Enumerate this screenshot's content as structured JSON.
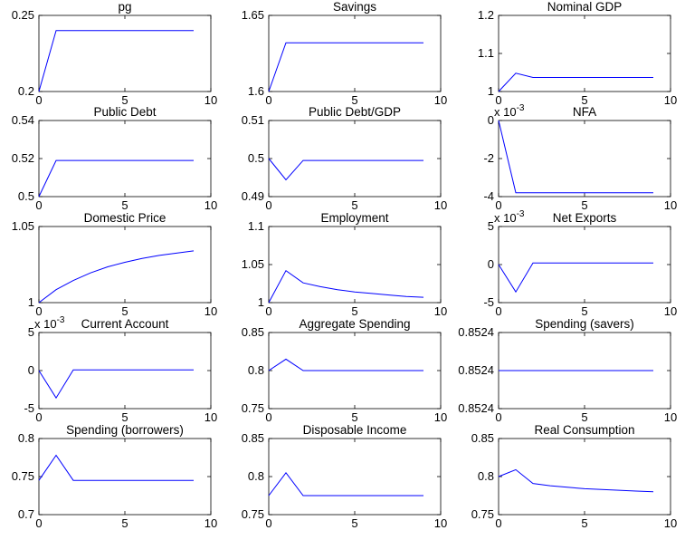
{
  "figure": {
    "background": "#ffffff",
    "line_color": "#0000ff"
  },
  "chart_data": [
    {
      "type": "line",
      "title": "pg",
      "x": [
        0,
        1,
        2,
        3,
        4,
        5,
        6,
        7,
        8,
        9
      ],
      "y": [
        0.2,
        0.24,
        0.24,
        0.24,
        0.24,
        0.24,
        0.24,
        0.24,
        0.24,
        0.24
      ],
      "xlim": [
        0,
        10
      ],
      "ylim": [
        0.2,
        0.25
      ],
      "xticks": [
        "0",
        "5",
        "10"
      ],
      "yticks": [
        "0.2",
        "0.25"
      ],
      "exponent": ""
    },
    {
      "type": "line",
      "title": "Savings",
      "x": [
        0,
        1,
        2,
        3,
        4,
        5,
        6,
        7,
        8,
        9
      ],
      "y": [
        1.6,
        1.632,
        1.632,
        1.632,
        1.632,
        1.632,
        1.632,
        1.632,
        1.632,
        1.632
      ],
      "xlim": [
        0,
        10
      ],
      "ylim": [
        1.6,
        1.65
      ],
      "xticks": [
        "0",
        "5",
        "10"
      ],
      "yticks": [
        "1.6",
        "1.65"
      ],
      "exponent": ""
    },
    {
      "type": "line",
      "title": "Nominal GDP",
      "x": [
        0,
        1,
        2,
        3,
        4,
        5,
        6,
        7,
        8,
        9
      ],
      "y": [
        1.0,
        1.048,
        1.037,
        1.037,
        1.037,
        1.037,
        1.037,
        1.037,
        1.037,
        1.037
      ],
      "xlim": [
        0,
        10
      ],
      "ylim": [
        1.0,
        1.2
      ],
      "xticks": [
        "0",
        "5",
        "10"
      ],
      "yticks": [
        "1",
        "1.1",
        "1.2"
      ],
      "exponent": ""
    },
    {
      "type": "line",
      "title": "Public Debt",
      "x": [
        0,
        1,
        2,
        3,
        4,
        5,
        6,
        7,
        8,
        9
      ],
      "y": [
        0.5,
        0.519,
        0.519,
        0.519,
        0.519,
        0.519,
        0.519,
        0.519,
        0.519,
        0.519
      ],
      "xlim": [
        0,
        10
      ],
      "ylim": [
        0.5,
        0.54
      ],
      "xticks": [
        "0",
        "5",
        "10"
      ],
      "yticks": [
        "0.5",
        "0.52",
        "0.54"
      ],
      "exponent": ""
    },
    {
      "type": "line",
      "title": "Public Debt/GDP",
      "x": [
        0,
        1,
        2,
        3,
        4,
        5,
        6,
        7,
        8,
        9
      ],
      "y": [
        0.5,
        0.4944,
        0.4995,
        0.4995,
        0.4995,
        0.4995,
        0.4995,
        0.4995,
        0.4995,
        0.4995
      ],
      "xlim": [
        0,
        10
      ],
      "ylim": [
        0.49,
        0.51
      ],
      "xticks": [
        "0",
        "5",
        "10"
      ],
      "yticks": [
        "0.49",
        "0.5",
        "0.51"
      ],
      "exponent": ""
    },
    {
      "type": "line",
      "title": "NFA",
      "x": [
        0,
        1,
        2,
        3,
        4,
        5,
        6,
        7,
        8,
        9
      ],
      "y": [
        0,
        -3.8,
        -3.8,
        -3.8,
        -3.8,
        -3.8,
        -3.8,
        -3.8,
        -3.8,
        -3.8
      ],
      "xlim": [
        0,
        10
      ],
      "ylim": [
        -4,
        0
      ],
      "xticks": [
        "0",
        "5",
        "10"
      ],
      "yticks": [
        "-4",
        "-2",
        "0"
      ],
      "exponent": "x 10-3"
    },
    {
      "type": "line",
      "title": "Domestic Price",
      "x": [
        0,
        1,
        2,
        3,
        4,
        5,
        6,
        7,
        8,
        9
      ],
      "y": [
        1.0,
        1.0085,
        1.0145,
        1.0195,
        1.0235,
        1.0265,
        1.029,
        1.031,
        1.0325,
        1.034
      ],
      "xlim": [
        0,
        10
      ],
      "ylim": [
        1.0,
        1.05
      ],
      "xticks": [
        "0",
        "5",
        "10"
      ],
      "yticks": [
        "1",
        "1.05"
      ],
      "exponent": ""
    },
    {
      "type": "line",
      "title": "Employment",
      "x": [
        0,
        1,
        2,
        3,
        4,
        5,
        6,
        7,
        8,
        9
      ],
      "y": [
        1.0,
        1.042,
        1.026,
        1.021,
        1.017,
        1.014,
        1.012,
        1.01,
        1.008,
        1.007
      ],
      "xlim": [
        0,
        10
      ],
      "ylim": [
        1.0,
        1.1
      ],
      "xticks": [
        "0",
        "5",
        "10"
      ],
      "yticks": [
        "1",
        "1.05",
        "1.1"
      ],
      "exponent": ""
    },
    {
      "type": "line",
      "title": "Net Exports",
      "x": [
        0,
        1,
        2,
        3,
        4,
        5,
        6,
        7,
        8,
        9
      ],
      "y": [
        0,
        -3.6,
        0.2,
        0.2,
        0.2,
        0.2,
        0.2,
        0.2,
        0.2,
        0.2
      ],
      "xlim": [
        0,
        10
      ],
      "ylim": [
        -5,
        5
      ],
      "xticks": [
        "0",
        "5",
        "10"
      ],
      "yticks": [
        "-5",
        "0",
        "5"
      ],
      "exponent": "x 10-3"
    },
    {
      "type": "line",
      "title": "Current Account",
      "x": [
        0,
        1,
        2,
        3,
        4,
        5,
        6,
        7,
        8,
        9
      ],
      "y": [
        0,
        -3.6,
        0.1,
        0.1,
        0.1,
        0.1,
        0.1,
        0.1,
        0.1,
        0.1
      ],
      "xlim": [
        0,
        10
      ],
      "ylim": [
        -5,
        5
      ],
      "xticks": [
        "0",
        "5",
        "10"
      ],
      "yticks": [
        "-5",
        "0",
        "5"
      ],
      "exponent": "x 10-3"
    },
    {
      "type": "line",
      "title": "Aggregate Spending",
      "x": [
        0,
        1,
        2,
        3,
        4,
        5,
        6,
        7,
        8,
        9
      ],
      "y": [
        0.8,
        0.815,
        0.8,
        0.8,
        0.8,
        0.8,
        0.8,
        0.8,
        0.8,
        0.8
      ],
      "xlim": [
        0,
        10
      ],
      "ylim": [
        0.75,
        0.85
      ],
      "xticks": [
        "0",
        "5",
        "10"
      ],
      "yticks": [
        "0.75",
        "0.8",
        "0.85"
      ],
      "exponent": ""
    },
    {
      "type": "line",
      "title": "Spending (savers)",
      "x": [
        0,
        1,
        2,
        3,
        4,
        5,
        6,
        7,
        8,
        9
      ],
      "y": [
        0.8524,
        0.8524,
        0.8524,
        0.8524,
        0.8524,
        0.8524,
        0.8524,
        0.8524,
        0.8524,
        0.8524
      ],
      "xlim": [
        0,
        10
      ],
      "ylim": [
        0,
        1
      ],
      "xticks": [
        "0",
        "5",
        "10"
      ],
      "yticks": [
        "0.8524",
        "0.8524",
        "0.8524"
      ],
      "exponent": "",
      "flat_level": 0.5
    },
    {
      "type": "line",
      "title": "Spending (borrowers)",
      "x": [
        0,
        1,
        2,
        3,
        4,
        5,
        6,
        7,
        8,
        9
      ],
      "y": [
        0.745,
        0.778,
        0.745,
        0.745,
        0.745,
        0.745,
        0.745,
        0.745,
        0.745,
        0.745
      ],
      "xlim": [
        0,
        10
      ],
      "ylim": [
        0.7,
        0.8
      ],
      "xticks": [
        "0",
        "5",
        "10"
      ],
      "yticks": [
        "0.7",
        "0.75",
        "0.8"
      ],
      "exponent": ""
    },
    {
      "type": "line",
      "title": "Disposable Income",
      "x": [
        0,
        1,
        2,
        3,
        4,
        5,
        6,
        7,
        8,
        9
      ],
      "y": [
        0.775,
        0.805,
        0.775,
        0.775,
        0.775,
        0.775,
        0.775,
        0.775,
        0.775,
        0.775
      ],
      "xlim": [
        0,
        10
      ],
      "ylim": [
        0.75,
        0.85
      ],
      "xticks": [
        "0",
        "5",
        "10"
      ],
      "yticks": [
        "0.75",
        "0.8",
        "0.85"
      ],
      "exponent": ""
    },
    {
      "type": "line",
      "title": "Real Consumption",
      "x": [
        0,
        1,
        2,
        3,
        4,
        5,
        6,
        7,
        8,
        9
      ],
      "y": [
        0.8,
        0.809,
        0.791,
        0.788,
        0.786,
        0.784,
        0.783,
        0.782,
        0.781,
        0.78
      ],
      "xlim": [
        0,
        10
      ],
      "ylim": [
        0.75,
        0.85
      ],
      "xticks": [
        "0",
        "5",
        "10"
      ],
      "yticks": [
        "0.75",
        "0.8",
        "0.85"
      ],
      "exponent": ""
    }
  ]
}
